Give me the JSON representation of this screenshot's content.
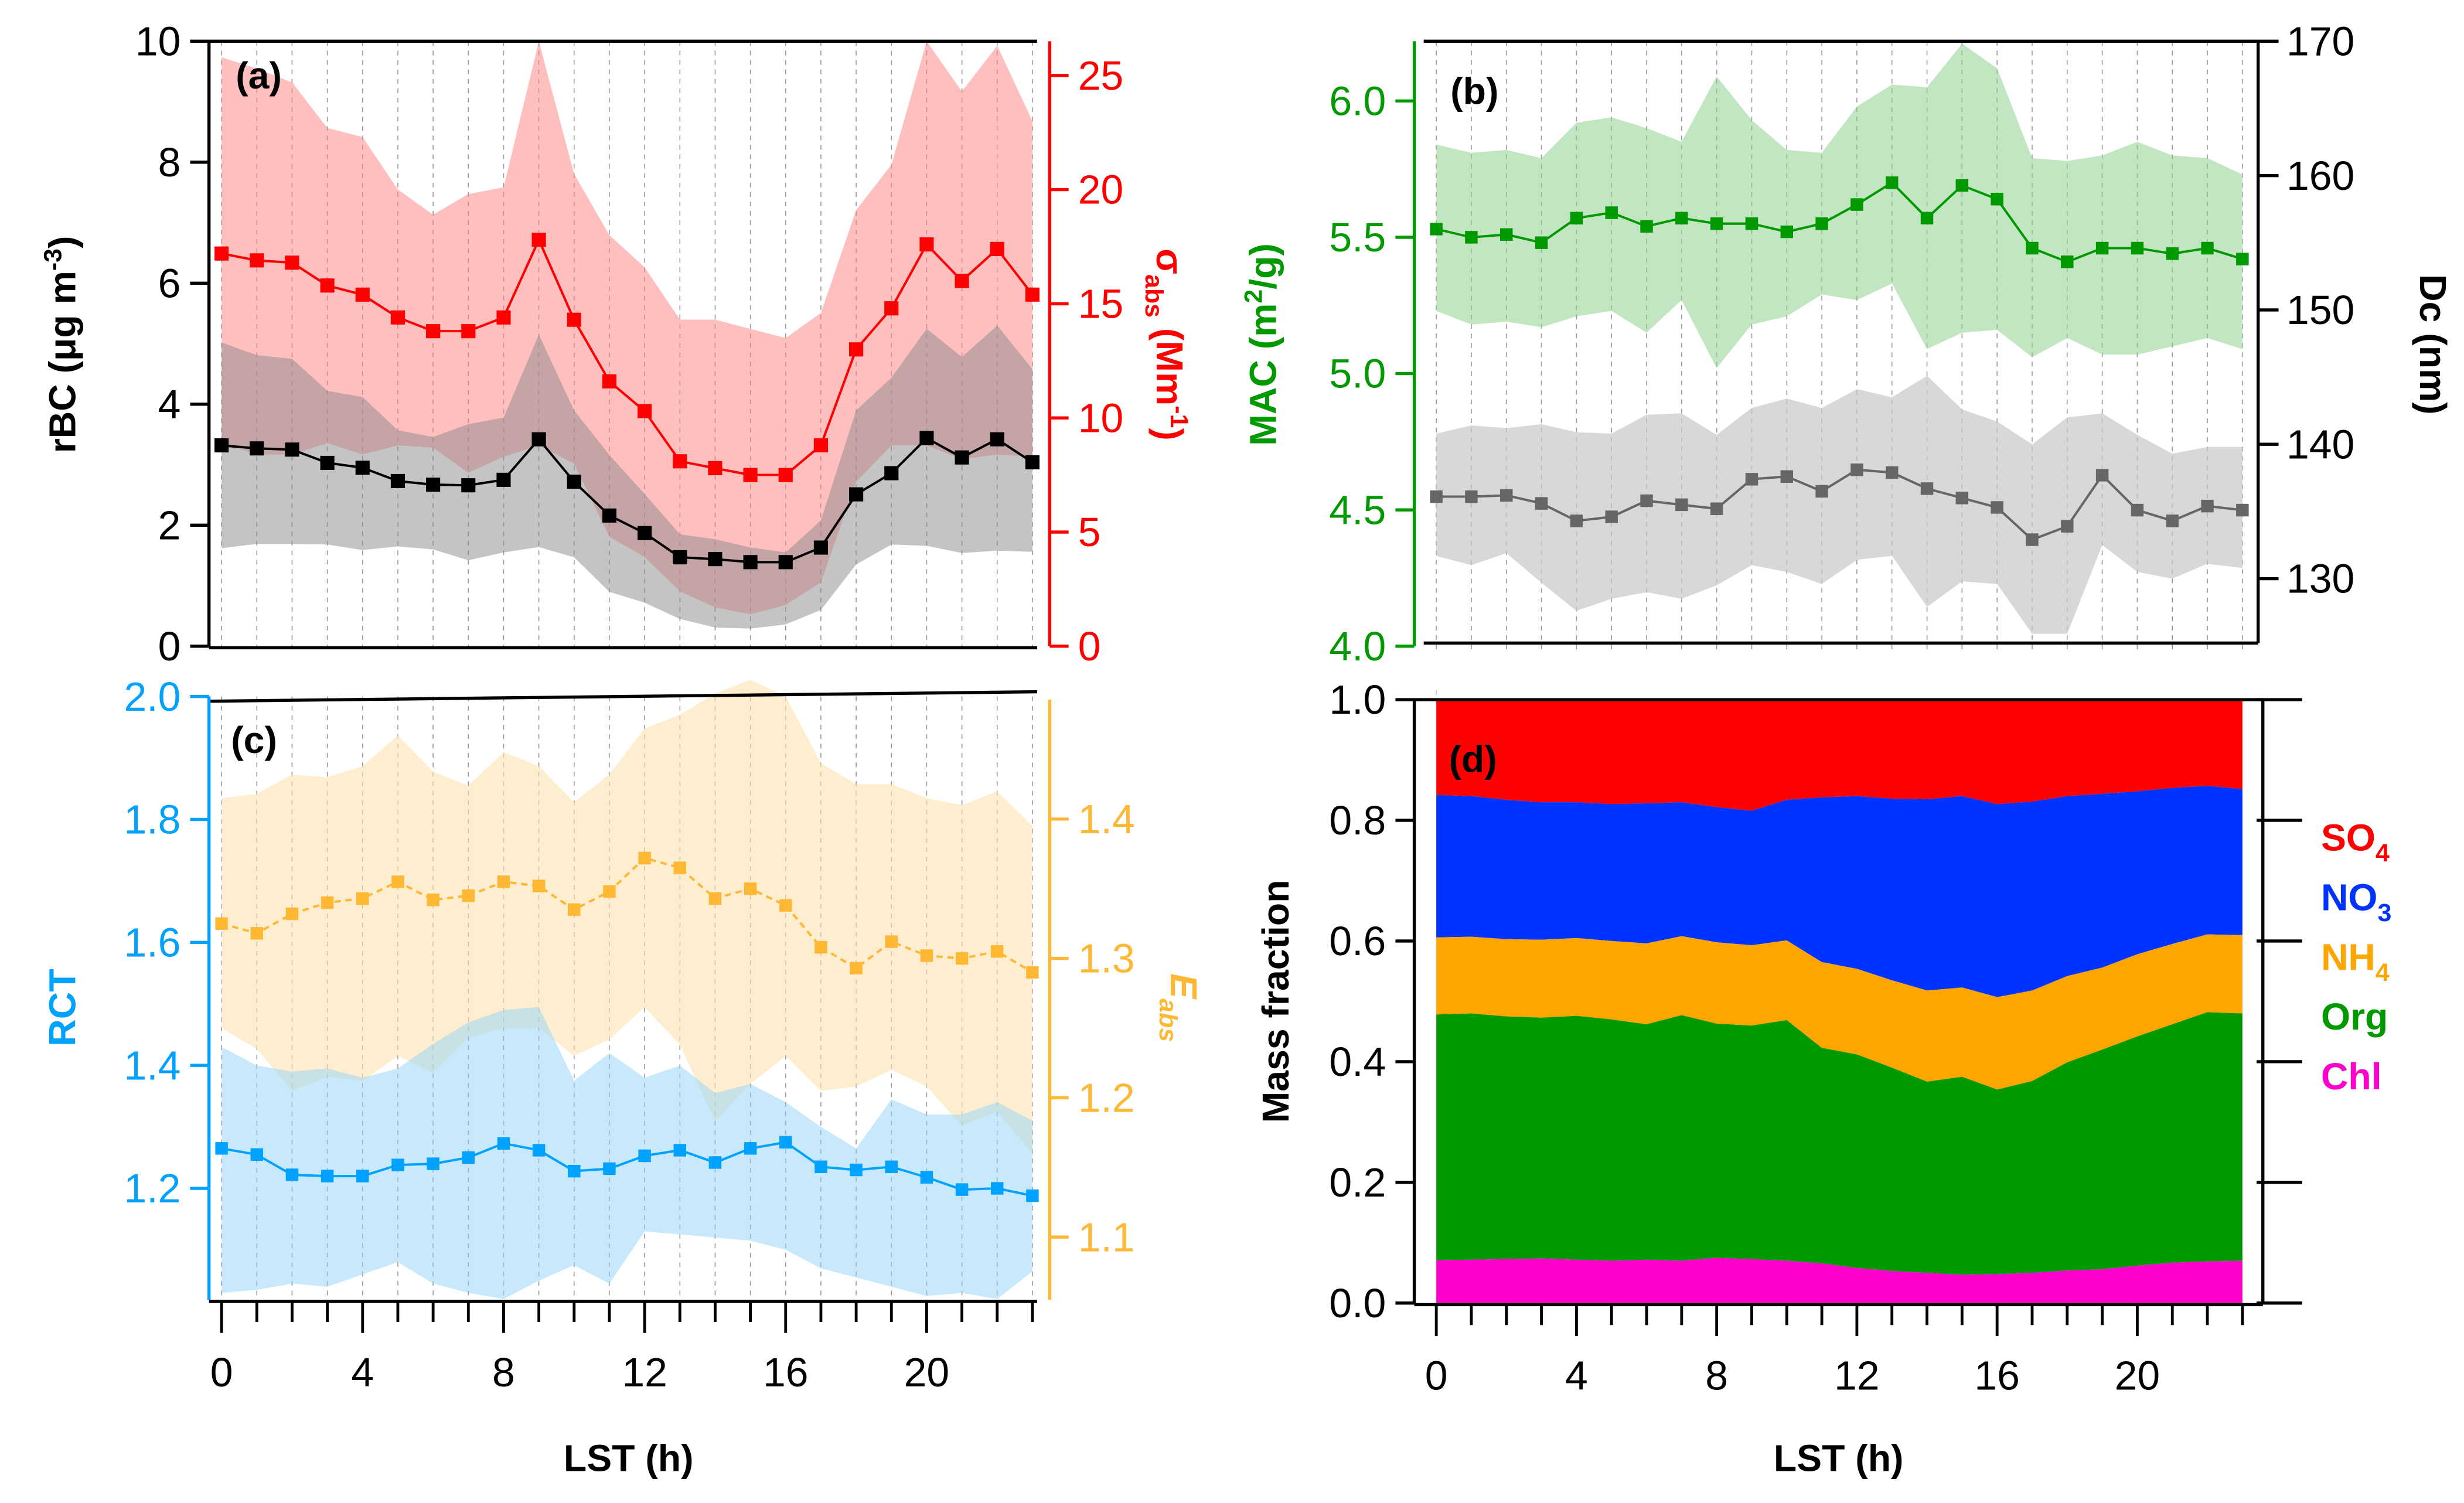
{
  "chart_data": [
    {
      "id": "a",
      "type": "line",
      "panel_label": "(a)",
      "x": [
        0,
        1,
        2,
        3,
        4,
        5,
        6,
        7,
        8,
        9,
        10,
        11,
        12,
        13,
        14,
        15,
        16,
        17,
        18,
        19,
        20,
        21,
        22,
        23
      ],
      "xlabel": "",
      "xticks": [
        0,
        4,
        8,
        12,
        16,
        20
      ],
      "y_left": {
        "label": "rBC (μg m",
        "label_sup": "-3",
        "label_end": ")",
        "range": [
          0,
          10
        ],
        "ticks": [
          0,
          2,
          4,
          6,
          8,
          10
        ],
        "color": "#000000"
      },
      "y_right": {
        "label": "σ",
        "label_sub": "abs",
        "label_mid": " (Mm",
        "label_sup": "-1",
        "label_end": ")",
        "range": [
          0,
          26.5
        ],
        "ticks": [
          0,
          5,
          10,
          15,
          20,
          25
        ],
        "color": "#ff0000"
      },
      "series": [
        {
          "name": "rBC",
          "axis": "left",
          "color": "#000000",
          "band_color": "#a0a0a0",
          "marker": "square",
          "line": "solid",
          "values": [
            3.32,
            3.27,
            3.25,
            3.03,
            2.95,
            2.73,
            2.67,
            2.66,
            2.75,
            3.42,
            2.72,
            2.16,
            1.87,
            1.47,
            1.44,
            1.39,
            1.39,
            1.63,
            2.51,
            2.86,
            3.44,
            3.12,
            3.42,
            3.04
          ],
          "upper": [
            5.02,
            4.81,
            4.75,
            4.22,
            4.12,
            3.57,
            3.46,
            3.67,
            3.78,
            5.15,
            3.9,
            3.16,
            2.52,
            1.85,
            1.77,
            1.63,
            1.55,
            2.08,
            3.9,
            4.44,
            5.25,
            4.78,
            5.3,
            4.58
          ],
          "lower": [
            1.62,
            1.69,
            1.69,
            1.68,
            1.59,
            1.65,
            1.6,
            1.42,
            1.55,
            1.64,
            1.47,
            0.9,
            0.72,
            0.45,
            0.31,
            0.29,
            0.36,
            0.6,
            1.35,
            1.68,
            1.66,
            1.54,
            1.58,
            1.56
          ]
        },
        {
          "name": "σabs",
          "axis": "right",
          "color": "#ff0000",
          "band_color": "#ff8080",
          "marker": "square",
          "line": "solid",
          "values": [
            17.2,
            16.9,
            16.8,
            15.8,
            15.4,
            14.4,
            13.8,
            13.8,
            14.4,
            17.8,
            14.3,
            11.6,
            10.3,
            8.1,
            7.8,
            7.5,
            7.5,
            8.8,
            13.0,
            14.8,
            17.6,
            16.0,
            17.4,
            15.4
          ],
          "upper": [
            25.8,
            25.3,
            24.7,
            22.7,
            22.3,
            20.0,
            18.9,
            19.8,
            20.1,
            26.5,
            20.7,
            18.0,
            16.6,
            14.3,
            14.3,
            13.9,
            13.5,
            14.6,
            19.1,
            21.1,
            26.5,
            24.3,
            26.3,
            23.0
          ],
          "lower": [
            8.9,
            8.4,
            8.4,
            8.9,
            8.4,
            8.8,
            8.7,
            7.6,
            8.3,
            8.8,
            8.0,
            4.8,
            3.9,
            2.4,
            1.7,
            1.4,
            1.8,
            2.8,
            7.2,
            8.8,
            8.8,
            8.2,
            8.4,
            8.3
          ]
        }
      ],
      "grid": "vertical dashed at each hour"
    },
    {
      "id": "b",
      "type": "line",
      "panel_label": "(b)",
      "x": [
        0,
        1,
        2,
        3,
        4,
        5,
        6,
        7,
        8,
        9,
        10,
        11,
        12,
        13,
        14,
        15,
        16,
        17,
        18,
        19,
        20,
        21,
        22,
        23
      ],
      "xlabel": "",
      "xticks": [
        0,
        4,
        8,
        12,
        16,
        20
      ],
      "y_left": {
        "label": "MAC (m",
        "label_sup": "2",
        "label_end": "/g)",
        "range": [
          4.0,
          6.22
        ],
        "ticks": [
          "4.0",
          "4.5",
          "5.0",
          "5.5",
          "6.0"
        ],
        "color": "#009900"
      },
      "y_right": {
        "label": "Dc (nm)",
        "range": [
          125.5,
          170
        ],
        "ticks": [
          130,
          140,
          150,
          160,
          170
        ],
        "color": "#000000"
      },
      "series": [
        {
          "name": "MAC",
          "axis": "left",
          "color": "#009900",
          "band_color": "#8fd18f",
          "marker": "square",
          "line": "solid",
          "values": [
            5.53,
            5.5,
            5.51,
            5.48,
            5.57,
            5.59,
            5.54,
            5.57,
            5.55,
            5.55,
            5.52,
            5.55,
            5.62,
            5.7,
            5.57,
            5.69,
            5.64,
            5.46,
            5.41,
            5.46,
            5.46,
            5.44,
            5.46,
            5.42
          ],
          "upper": [
            5.84,
            5.81,
            5.82,
            5.79,
            5.92,
            5.94,
            5.9,
            5.85,
            6.09,
            5.93,
            5.82,
            5.81,
            5.98,
            6.06,
            6.05,
            6.21,
            6.12,
            5.79,
            5.78,
            5.8,
            5.85,
            5.8,
            5.79,
            5.73
          ],
          "lower": [
            5.23,
            5.18,
            5.19,
            5.17,
            5.21,
            5.23,
            5.15,
            5.27,
            5.02,
            5.18,
            5.21,
            5.29,
            5.27,
            5.33,
            5.09,
            5.15,
            5.16,
            5.06,
            5.13,
            5.07,
            5.07,
            5.1,
            5.13,
            5.09
          ]
        },
        {
          "name": "Dc",
          "axis": "right",
          "color": "#666666",
          "band_color": "#c8c8c8",
          "marker": "square",
          "line": "solid",
          "values": [
            136.1,
            136.1,
            136.2,
            135.6,
            134.3,
            134.6,
            135.8,
            135.5,
            135.2,
            137.4,
            137.6,
            136.5,
            138.1,
            137.9,
            136.7,
            136.0,
            135.3,
            132.9,
            133.9,
            137.7,
            135.1,
            134.3,
            135.4,
            135.1
          ],
          "upper": [
            140.8,
            141.4,
            141.2,
            141.5,
            140.9,
            140.8,
            142.2,
            142.3,
            140.7,
            142.7,
            143.4,
            142.7,
            144.1,
            143.5,
            145.1,
            142.6,
            141.7,
            140.0,
            142.0,
            142.3,
            140.7,
            139.3,
            139.8,
            139.8
          ],
          "lower": [
            131.7,
            131.0,
            131.9,
            129.7,
            127.6,
            128.5,
            129.0,
            128.5,
            129.5,
            131.0,
            130.5,
            129.6,
            131.4,
            131.7,
            127.9,
            129.8,
            129.6,
            125.9,
            125.9,
            132.5,
            130.5,
            130.0,
            131.1,
            130.8
          ]
        }
      ],
      "grid": "vertical dashed at each hour"
    },
    {
      "id": "c",
      "type": "line",
      "panel_label": "(c)",
      "x": [
        0,
        1,
        2,
        3,
        4,
        5,
        6,
        7,
        8,
        9,
        10,
        11,
        12,
        13,
        14,
        15,
        16,
        17,
        18,
        19,
        20,
        21,
        22,
        23
      ],
      "xlabel": "LST (h)",
      "xticks": [
        0,
        4,
        8,
        12,
        16,
        20
      ],
      "y_left": {
        "label": "RCT",
        "range": [
          1.0,
          2.0
        ],
        "ticks": [
          "1.2",
          "1.4",
          "1.6",
          "1.8",
          "2.0"
        ],
        "color": "#00a2ff"
      },
      "y_right": {
        "label": "E",
        "label_sub": "abs",
        "range": [
          1.04,
          1.5
        ],
        "ticks": [
          "1.1",
          "1.2",
          "1.3",
          "1.4"
        ],
        "color": "#ffb833"
      },
      "series": [
        {
          "name": "RCT",
          "axis": "left",
          "color": "#00a2ff",
          "band_color": "#8fd3f7",
          "marker": "square",
          "line": "solid",
          "values": [
            1.265,
            1.255,
            1.222,
            1.22,
            1.22,
            1.238,
            1.24,
            1.25,
            1.273,
            1.262,
            1.228,
            1.232,
            1.253,
            1.262,
            1.242,
            1.265,
            1.275,
            1.235,
            1.23,
            1.235,
            1.218,
            1.198,
            1.2,
            1.188
          ],
          "upper": [
            1.43,
            1.4,
            1.39,
            1.395,
            1.38,
            1.395,
            1.435,
            1.47,
            1.49,
            1.495,
            1.375,
            1.42,
            1.38,
            1.4,
            1.355,
            1.37,
            1.34,
            1.3,
            1.265,
            1.345,
            1.32,
            1.32,
            1.34,
            1.31
          ],
          "lower": [
            1.03,
            1.035,
            1.045,
            1.04,
            1.06,
            1.08,
            1.045,
            1.03,
            1.02,
            1.05,
            1.075,
            1.045,
            1.13,
            1.125,
            1.12,
            1.115,
            1.1,
            1.07,
            1.055,
            1.04,
            1.025,
            1.03,
            1.02,
            1.065
          ]
        },
        {
          "name": "Eabs",
          "axis": "right",
          "color": "#ffb833",
          "band_color": "#fde2b0",
          "marker": "square",
          "line": "dashed",
          "values": [
            1.325,
            1.318,
            1.332,
            1.34,
            1.343,
            1.355,
            1.342,
            1.345,
            1.355,
            1.352,
            1.335,
            1.348,
            1.372,
            1.365,
            1.343,
            1.35,
            1.338,
            1.308,
            1.293,
            1.312,
            1.302,
            1.3,
            1.305,
            1.29
          ],
          "upper": [
            1.415,
            1.418,
            1.432,
            1.43,
            1.438,
            1.46,
            1.434,
            1.424,
            1.448,
            1.438,
            1.412,
            1.432,
            1.465,
            1.475,
            1.49,
            1.5,
            1.488,
            1.44,
            1.425,
            1.425,
            1.415,
            1.41,
            1.42,
            1.395
          ],
          "lower": [
            1.25,
            1.235,
            1.205,
            1.215,
            1.212,
            1.23,
            1.218,
            1.243,
            1.25,
            1.25,
            1.23,
            1.242,
            1.265,
            1.238,
            1.183,
            1.21,
            1.23,
            1.205,
            1.208,
            1.22,
            1.208,
            1.18,
            1.19,
            1.16
          ]
        }
      ],
      "grid": "vertical dashed at each hour"
    },
    {
      "id": "d",
      "type": "area",
      "stacked": true,
      "panel_label": "(d)",
      "x": [
        0,
        1,
        2,
        3,
        4,
        5,
        6,
        7,
        8,
        9,
        10,
        11,
        12,
        13,
        14,
        15,
        16,
        17,
        18,
        19,
        20,
        21,
        22,
        23
      ],
      "xlabel": "LST (h)",
      "xticks": [
        0,
        4,
        8,
        12,
        16,
        20
      ],
      "ylabel": "Mass fraction",
      "ylim": [
        0,
        1.0
      ],
      "yticks": [
        "0.0",
        "0.2",
        "0.4",
        "0.6",
        "0.8",
        "1.0"
      ],
      "legend_position": "right",
      "series_cumulative_top": [
        {
          "name": "Chl",
          "sub": "",
          "color": "#ff00cc",
          "values": [
            0.071,
            0.072,
            0.073,
            0.074,
            0.072,
            0.07,
            0.072,
            0.07,
            0.075,
            0.073,
            0.07,
            0.066,
            0.058,
            0.053,
            0.05,
            0.047,
            0.048,
            0.05,
            0.054,
            0.056,
            0.062,
            0.067,
            0.069,
            0.07
          ]
        },
        {
          "name": "Org",
          "sub": "",
          "color": "#009900",
          "values": [
            0.478,
            0.48,
            0.475,
            0.473,
            0.476,
            0.47,
            0.462,
            0.477,
            0.463,
            0.46,
            0.469,
            0.423,
            0.412,
            0.39,
            0.367,
            0.375,
            0.354,
            0.368,
            0.399,
            0.42,
            0.442,
            0.462,
            0.482,
            0.48
          ]
        },
        {
          "name": "NH",
          "sub": "4",
          "color": "#ffa500",
          "values": [
            0.606,
            0.607,
            0.603,
            0.602,
            0.605,
            0.6,
            0.596,
            0.608,
            0.598,
            0.593,
            0.601,
            0.565,
            0.554,
            0.535,
            0.518,
            0.523,
            0.507,
            0.518,
            0.542,
            0.556,
            0.578,
            0.595,
            0.611,
            0.61
          ]
        },
        {
          "name": "NO",
          "sub": "3",
          "color": "#0033ff",
          "values": [
            0.842,
            0.84,
            0.834,
            0.83,
            0.83,
            0.827,
            0.828,
            0.83,
            0.822,
            0.816,
            0.834,
            0.838,
            0.84,
            0.836,
            0.835,
            0.84,
            0.827,
            0.831,
            0.84,
            0.844,
            0.848,
            0.854,
            0.857,
            0.852
          ]
        },
        {
          "name": "SO",
          "sub": "4",
          "color": "#ff0000",
          "values": [
            1,
            1,
            1,
            1,
            1,
            1,
            1,
            1,
            1,
            1,
            1,
            1,
            1,
            1,
            1,
            1,
            1,
            1,
            1,
            1,
            1,
            1,
            1,
            1
          ]
        }
      ],
      "legend_order": [
        "SO4",
        "NO3",
        "NH4",
        "Org",
        "Chl"
      ]
    }
  ]
}
